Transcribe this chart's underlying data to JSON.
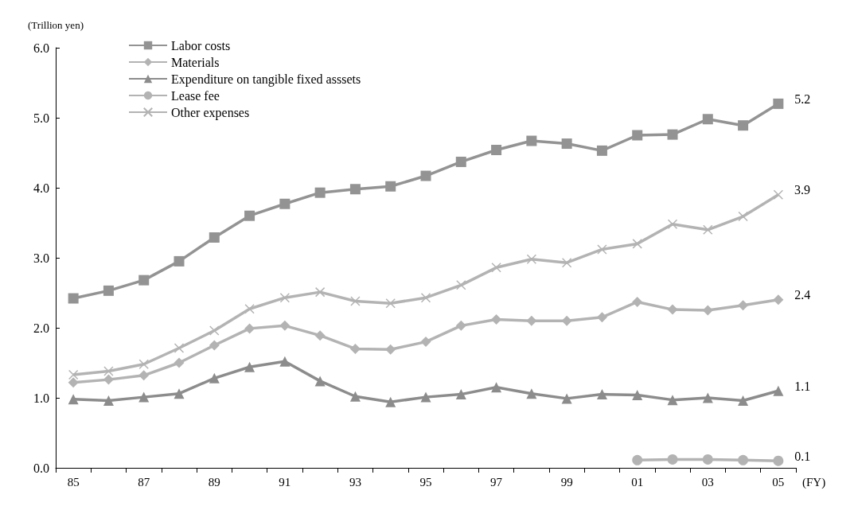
{
  "chart_data": {
    "type": "line",
    "ylabel": "(Trillion yen)",
    "xlabel": "(FY)",
    "categories": [
      "85",
      null,
      "87",
      null,
      "89",
      null,
      "91",
      null,
      "93",
      null,
      "95",
      null,
      "97",
      null,
      "99",
      null,
      "01",
      null,
      "03",
      null,
      "05"
    ],
    "series": [
      {
        "name": "Labor costs",
        "color": "#939393",
        "marker": "square",
        "values": [
          2.42,
          2.53,
          2.68,
          2.95,
          3.29,
          3.6,
          3.77,
          3.93,
          3.98,
          4.02,
          4.17,
          4.37,
          4.54,
          4.67,
          4.63,
          4.53,
          4.75,
          4.76,
          4.98,
          4.89,
          5.2
        ],
        "value_labels": [
          null,
          null,
          null,
          null,
          null,
          null,
          null,
          null,
          null,
          null,
          null,
          null,
          null,
          null,
          null,
          null,
          null,
          null,
          null,
          null,
          "5.2"
        ]
      },
      {
        "name": "Materials",
        "color": "#b3b3b3",
        "marker": "diamond",
        "values": [
          1.22,
          1.26,
          1.32,
          1.5,
          1.75,
          1.99,
          2.03,
          1.89,
          1.7,
          1.69,
          1.8,
          2.03,
          2.12,
          2.1,
          2.1,
          2.15,
          2.37,
          2.26,
          2.25,
          2.32,
          2.4
        ],
        "value_labels": [
          null,
          null,
          null,
          null,
          null,
          null,
          null,
          null,
          null,
          null,
          null,
          null,
          null,
          null,
          null,
          null,
          null,
          null,
          null,
          null,
          "2.4"
        ]
      },
      {
        "name": "Expenditure on tangible fixed asssets",
        "color": "#8c8c8c",
        "marker": "triangle",
        "values": [
          0.98,
          0.96,
          1.01,
          1.06,
          1.28,
          1.44,
          1.52,
          1.24,
          1.02,
          0.94,
          1.01,
          1.05,
          1.15,
          1.06,
          0.99,
          1.05,
          1.04,
          0.97,
          1.0,
          0.96,
          1.1
        ],
        "value_labels": [
          null,
          null,
          null,
          null,
          null,
          null,
          null,
          null,
          null,
          null,
          null,
          null,
          null,
          null,
          null,
          null,
          null,
          null,
          null,
          null,
          "1.1"
        ]
      },
      {
        "name": "Lease fee",
        "color": "#b3b3b3",
        "marker": "circle",
        "values": [
          null,
          null,
          null,
          null,
          null,
          null,
          null,
          null,
          null,
          null,
          null,
          null,
          null,
          null,
          null,
          null,
          0.11,
          0.12,
          0.12,
          0.11,
          0.1
        ],
        "value_labels": [
          null,
          null,
          null,
          null,
          null,
          null,
          null,
          null,
          null,
          null,
          null,
          null,
          null,
          null,
          null,
          null,
          null,
          null,
          null,
          null,
          "0.1"
        ]
      },
      {
        "name": "Other expenses",
        "color": "#b3b3b3",
        "marker": "cross",
        "values": [
          1.33,
          1.38,
          1.48,
          1.71,
          1.96,
          2.27,
          2.43,
          2.51,
          2.38,
          2.35,
          2.43,
          2.61,
          2.86,
          2.98,
          2.93,
          3.12,
          3.2,
          3.48,
          3.4,
          3.59,
          3.9
        ],
        "value_labels": [
          null,
          null,
          null,
          null,
          null,
          null,
          null,
          null,
          null,
          null,
          null,
          null,
          null,
          null,
          null,
          null,
          null,
          null,
          null,
          null,
          "3.9"
        ]
      }
    ],
    "ylim": [
      0,
      6
    ],
    "yticks": [
      {
        "value": 0,
        "label": "0.0"
      },
      {
        "value": 1,
        "label": "1.0"
      },
      {
        "value": 2,
        "label": "2.0"
      },
      {
        "value": 3,
        "label": "3.0"
      },
      {
        "value": 4,
        "label": "4.0"
      },
      {
        "value": 5,
        "label": "5.0"
      },
      {
        "value": 6,
        "label": "6.0"
      }
    ],
    "grid": false,
    "legend": "top left",
    "line_style": "solid"
  }
}
